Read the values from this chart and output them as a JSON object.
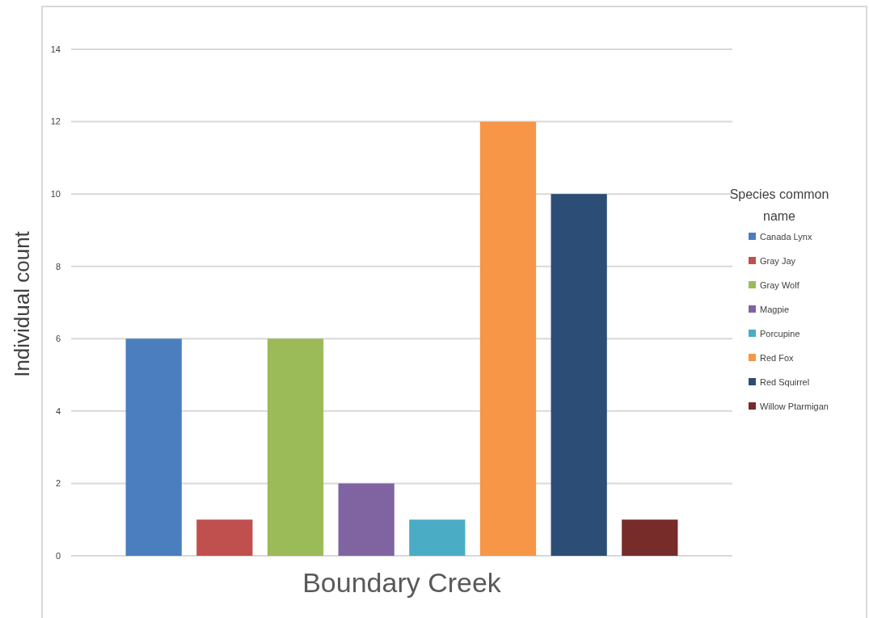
{
  "chart_data": {
    "type": "bar",
    "categories": [
      "Boundary Creek"
    ],
    "ylabel": "Individual count",
    "legend_title": "Species common name",
    "ylim": [
      0,
      14
    ],
    "yticks": [
      0,
      2,
      4,
      6,
      8,
      10,
      12,
      14
    ],
    "grid": "y",
    "legend": "right",
    "series": [
      {
        "name": "Canada Lynx",
        "color": "#4a7ebf",
        "values": [
          6
        ]
      },
      {
        "name": "Gray Jay",
        "color": "#c0504d",
        "values": [
          1
        ]
      },
      {
        "name": "Gray Wolf",
        "color": "#9bbb59",
        "values": [
          6
        ]
      },
      {
        "name": "Magpie",
        "color": "#8064a2",
        "values": [
          2
        ]
      },
      {
        "name": "Porcupine",
        "color": "#4bacc6",
        "values": [
          1
        ]
      },
      {
        "name": "Red Fox",
        "color": "#f79646",
        "values": [
          12
        ]
      },
      {
        "name": "Red Squirrel",
        "color": "#2c4d75",
        "values": [
          10
        ]
      },
      {
        "name": "Willow Ptarmigan",
        "color": "#772c2a",
        "values": [
          1
        ]
      }
    ]
  }
}
